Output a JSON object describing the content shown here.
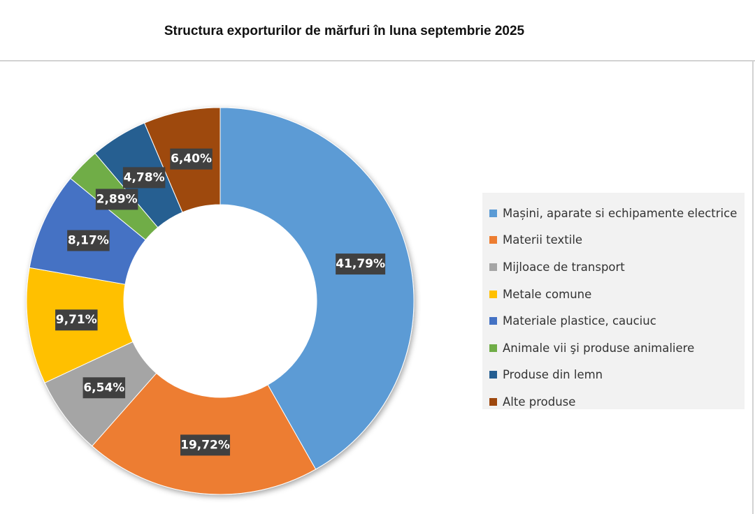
{
  "title": "Structura exporturilor de mărfuri în luna septembrie 2025",
  "chart_data": {
    "type": "pie",
    "subtype": "donut",
    "title": "Structura exporturilor de mărfuri în luna septembrie 2025",
    "legend_position": "right",
    "categories": [
      "Mașini, aparate si echipamente electrice",
      "Materii textile",
      "Mijloace de transport",
      "Metale comune",
      "Materiale plastice, cauciuc",
      "Animale vii şi produse animaliere",
      "Produse din lemn",
      "Alte produse"
    ],
    "values": [
      41.79,
      19.72,
      6.54,
      9.71,
      8.17,
      2.89,
      4.78,
      6.4
    ],
    "value_labels": [
      "41,79%",
      "19,72%",
      "6,54%",
      "9,71%",
      "8,17%",
      "2,89%",
      "4,78%",
      "6,40%"
    ],
    "colors": [
      "#5b9bd5",
      "#ed7d31",
      "#a5a5a5",
      "#ffc000",
      "#4472c4",
      "#70ad47",
      "#255e91",
      "#9e480e"
    ]
  }
}
